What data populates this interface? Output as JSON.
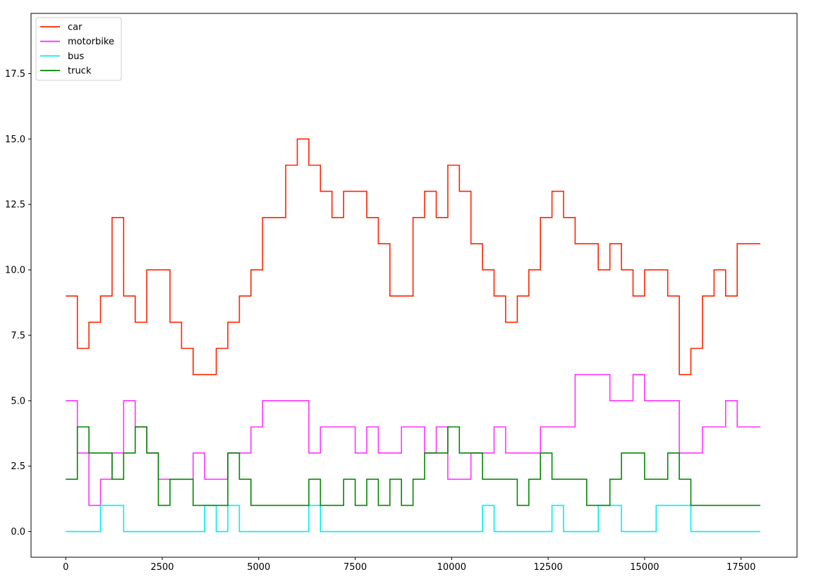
{
  "chart_data": {
    "type": "line",
    "title": "",
    "xlabel": "",
    "ylabel": "",
    "xlim": [
      -900,
      18950
    ],
    "ylim": [
      -0.98,
      19.8
    ],
    "x_ticks": [
      0,
      2500,
      5000,
      7500,
      10000,
      12500,
      15000,
      17500
    ],
    "x_tick_labels": [
      "0",
      "2500",
      "5000",
      "7500",
      "10000",
      "12500",
      "15000",
      "17500"
    ],
    "y_ticks": [
      0.0,
      2.5,
      5.0,
      7.5,
      10.0,
      12.5,
      15.0,
      17.5
    ],
    "y_tick_labels": [
      "0.0",
      "2.5",
      "5.0",
      "7.5",
      "10.0",
      "12.5",
      "15.0",
      "17.5"
    ],
    "grid": false,
    "legend_position": "top-left",
    "series": [
      {
        "name": "car",
        "color": "#ff2200",
        "x": [
          0,
          300,
          600,
          900,
          1200,
          1500,
          1800,
          2100,
          2400,
          2700,
          3000,
          3300,
          3600,
          3900,
          4200,
          4500,
          4800,
          5100,
          5400,
          5700,
          6000,
          6300,
          6600,
          6900,
          7200,
          7500,
          7800,
          8100,
          8400,
          8700,
          9000,
          9300,
          9600,
          9900,
          10200,
          10500,
          10800,
          11100,
          11400,
          11700,
          12000,
          12300,
          12600,
          12900,
          13200,
          13500,
          13800,
          14100,
          14400,
          14700,
          15000,
          15300,
          15600,
          15900,
          16200,
          16500,
          16800,
          17100,
          17400,
          17700,
          18000
        ],
        "values": [
          9,
          7,
          8,
          9,
          12,
          9,
          8,
          10,
          10,
          8,
          7,
          6,
          6,
          7,
          8,
          9,
          10,
          12,
          12,
          14,
          15,
          14,
          13,
          12,
          13,
          13,
          12,
          11,
          9,
          9,
          12,
          13,
          12,
          14,
          13,
          11,
          10,
          9,
          8,
          9,
          10,
          12,
          13,
          12,
          11,
          11,
          10,
          11,
          10,
          9,
          10,
          10,
          9,
          6,
          7,
          9,
          10,
          9,
          11,
          11,
          11
        ]
      },
      {
        "name": "motorbike",
        "color": "#ff33ff",
        "x": [
          0,
          300,
          600,
          900,
          1200,
          1500,
          1800,
          2100,
          2400,
          2700,
          3000,
          3300,
          3600,
          3900,
          4200,
          4500,
          4800,
          5100,
          5400,
          5700,
          6000,
          6300,
          6600,
          6900,
          7200,
          7500,
          7800,
          8100,
          8400,
          8700,
          9000,
          9300,
          9600,
          9900,
          10200,
          10500,
          10800,
          11100,
          11400,
          11700,
          12000,
          12300,
          12600,
          12900,
          13200,
          13500,
          13800,
          14100,
          14400,
          14700,
          15000,
          15300,
          15600,
          15900,
          16200,
          16500,
          16800,
          17100,
          17400,
          17700,
          18000
        ],
        "values": [
          5,
          3,
          1,
          2,
          3,
          5,
          4,
          3,
          2,
          2,
          2,
          3,
          2,
          2,
          3,
          3,
          4,
          5,
          5,
          5,
          5,
          3,
          4,
          4,
          4,
          3,
          4,
          3,
          3,
          4,
          4,
          3,
          4,
          2,
          2,
          3,
          3,
          4,
          3,
          3,
          3,
          4,
          4,
          4,
          6,
          6,
          6,
          5,
          5,
          6,
          5,
          5,
          5,
          3,
          3,
          4,
          4,
          5,
          4,
          4,
          4
        ]
      },
      {
        "name": "bus",
        "color": "#00eeee",
        "x": [
          0,
          300,
          600,
          900,
          1200,
          1500,
          1800,
          2100,
          2400,
          2700,
          3000,
          3300,
          3600,
          3900,
          4200,
          4500,
          4800,
          5100,
          5400,
          5700,
          6000,
          6300,
          6600,
          6900,
          7200,
          7500,
          7800,
          8100,
          8400,
          8700,
          9000,
          9300,
          9600,
          9900,
          10200,
          10500,
          10800,
          11100,
          11400,
          11700,
          12000,
          12300,
          12600,
          12900,
          13200,
          13500,
          13800,
          14100,
          14400,
          14700,
          15000,
          15300,
          15600,
          15900,
          16200,
          16500,
          16800,
          17100,
          17400,
          17700,
          18000
        ],
        "values": [
          0,
          0,
          0,
          1,
          1,
          0,
          0,
          0,
          0,
          0,
          0,
          0,
          1,
          0,
          1,
          0,
          0,
          0,
          0,
          0,
          0,
          1,
          0,
          0,
          0,
          0,
          0,
          0,
          0,
          0,
          0,
          0,
          0,
          0,
          0,
          0,
          1,
          0,
          0,
          0,
          0,
          0,
          1,
          0,
          0,
          0,
          1,
          1,
          0,
          0,
          0,
          1,
          1,
          1,
          0,
          0,
          0,
          0,
          0,
          0,
          0
        ]
      },
      {
        "name": "truck",
        "color": "#008800",
        "x": [
          0,
          300,
          600,
          900,
          1200,
          1500,
          1800,
          2100,
          2400,
          2700,
          3000,
          3300,
          3600,
          3900,
          4200,
          4500,
          4800,
          5100,
          5400,
          5700,
          6000,
          6300,
          6600,
          6900,
          7200,
          7500,
          7800,
          8100,
          8400,
          8700,
          9000,
          9300,
          9600,
          9900,
          10200,
          10500,
          10800,
          11100,
          11400,
          11700,
          12000,
          12300,
          12600,
          12900,
          13200,
          13500,
          13800,
          14100,
          14400,
          14700,
          15000,
          15300,
          15600,
          15900,
          16200,
          16500,
          16800,
          17100,
          17400,
          17700,
          18000
        ],
        "values": [
          2,
          4,
          3,
          3,
          2,
          3,
          4,
          3,
          1,
          2,
          2,
          1,
          1,
          1,
          3,
          2,
          1,
          1,
          1,
          1,
          1,
          2,
          1,
          1,
          2,
          1,
          2,
          1,
          2,
          1,
          2,
          3,
          3,
          4,
          3,
          3,
          2,
          2,
          2,
          1,
          2,
          3,
          2,
          2,
          2,
          1,
          1,
          2,
          3,
          3,
          2,
          2,
          3,
          2,
          1,
          1,
          1,
          1,
          1,
          1,
          1
        ]
      }
    ]
  }
}
